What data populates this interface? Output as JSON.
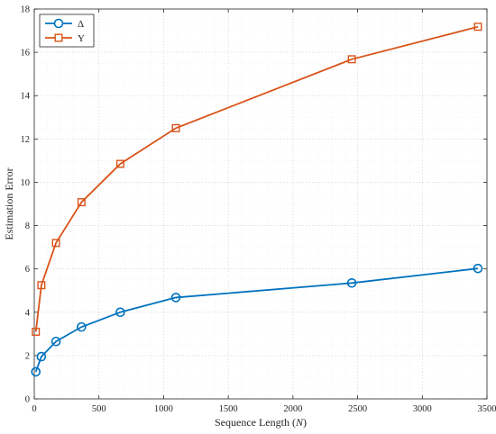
{
  "chart_data": {
    "type": "line",
    "title": "",
    "xlabel": "Sequence Length (N)",
    "xlabel_parts": {
      "prefix": "Sequence Length (",
      "var": "N",
      "suffix": ")"
    },
    "ylabel": "Estimation Error",
    "xlim": [
      0,
      3500
    ],
    "ylim": [
      0,
      18
    ],
    "xticks": [
      0,
      500,
      1000,
      1500,
      2000,
      2500,
      3000,
      3500
    ],
    "yticks": [
      0,
      2,
      4,
      6,
      8,
      10,
      12,
      14,
      16,
      18
    ],
    "grid": true,
    "legend_position": "top-left",
    "series": [
      {
        "name": "Δ",
        "color": "#0072BD",
        "marker": "circle",
        "x": [
          12,
          55,
          168,
          365,
          665,
          1095,
          2455,
          3430
        ],
        "y": [
          1.25,
          1.95,
          2.65,
          3.32,
          4.0,
          4.68,
          5.35,
          6.02
        ]
      },
      {
        "name": "Υ",
        "color": "#D95319",
        "marker": "square",
        "x": [
          12,
          55,
          168,
          365,
          665,
          1095,
          2455,
          3430
        ],
        "y": [
          3.1,
          5.25,
          7.2,
          9.08,
          10.85,
          12.5,
          15.68,
          17.18
        ]
      }
    ]
  }
}
